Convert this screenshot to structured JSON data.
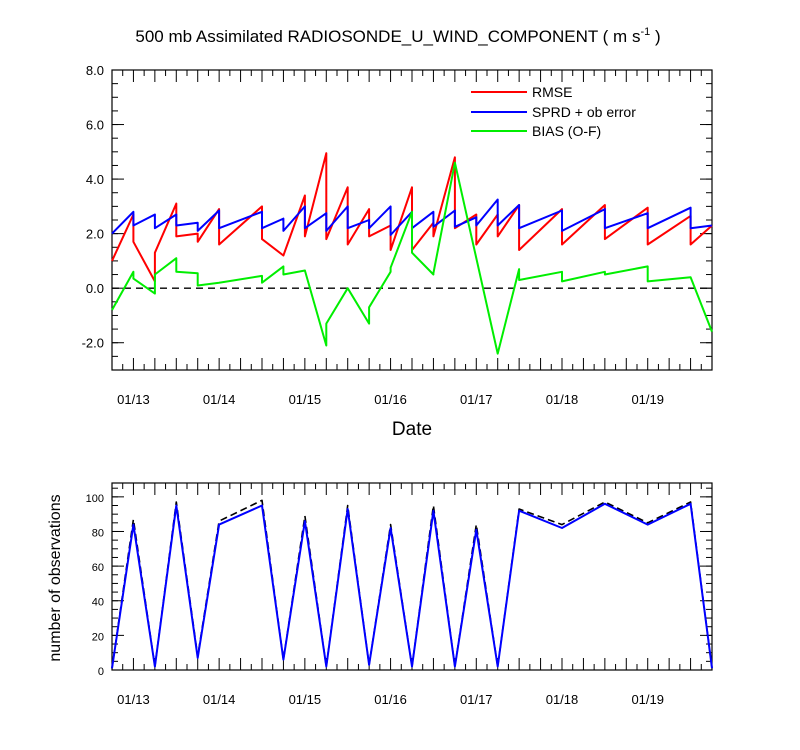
{
  "colors": {
    "rmse": "#ff0000",
    "sprd": "#0000ff",
    "bias": "#00ee00",
    "zero_line": "#000000",
    "obs_total": "#000000",
    "obs_assim": "#0000ff"
  },
  "chart_data": [
    {
      "type": "line",
      "title": "500 mb Assimilated RADIOSONDE_U_WIND_COMPONENT ( m s",
      "title_unit_sup": "-1",
      "title_end": " )",
      "xlabel": "Date",
      "ylabel": "",
      "x_ticks": [
        "01/13",
        "01/14",
        "01/15",
        "01/16",
        "01/17",
        "01/18",
        "01/19"
      ],
      "xlim": [
        0,
        28
      ],
      "ylim": [
        -3,
        8
      ],
      "y_ticks": [
        "8.0",
        "6.0",
        "4.0",
        "2.0",
        "0.0",
        "-2.0"
      ],
      "y_tick_values": [
        8,
        6,
        4,
        2,
        0,
        -2
      ],
      "zero_line": true,
      "legend": [
        "RMSE",
        "SPRD + ob error",
        "BIAS (O-F)"
      ],
      "legend_position": "top-right",
      "series": [
        {
          "name": "RMSE",
          "color_key": "rmse",
          "points": [
            [
              0,
              1.0
            ],
            [
              1,
              2.7
            ],
            [
              1,
              1.7
            ],
            [
              2,
              0.25
            ],
            [
              2,
              1.3
            ],
            [
              3,
              3.1
            ],
            [
              3,
              1.9
            ],
            [
              4,
              2.0
            ],
            [
              4,
              1.7
            ],
            [
              5,
              2.9
            ],
            [
              5,
              1.6
            ],
            [
              7,
              3.0
            ],
            [
              7,
              1.8
            ],
            [
              8,
              1.2
            ],
            [
              9,
              3.4
            ],
            [
              9,
              1.9
            ],
            [
              10,
              4.95
            ],
            [
              10,
              1.8
            ],
            [
              11,
              3.7
            ],
            [
              11,
              1.6
            ],
            [
              12,
              2.9
            ],
            [
              12,
              1.9
            ],
            [
              13,
              2.3
            ],
            [
              13,
              1.4
            ],
            [
              14,
              3.7
            ],
            [
              14,
              1.4
            ],
            [
              15,
              2.4
            ],
            [
              15,
              1.9
            ],
            [
              16,
              4.8
            ],
            [
              16,
              2.2
            ],
            [
              17,
              2.7
            ],
            [
              17,
              1.6
            ],
            [
              18,
              2.7
            ],
            [
              18,
              1.9
            ],
            [
              19,
              3.05
            ],
            [
              19,
              1.4
            ],
            [
              21,
              2.9
            ],
            [
              21,
              1.6
            ],
            [
              23,
              3.05
            ],
            [
              23,
              1.8
            ],
            [
              25,
              2.95
            ],
            [
              25,
              1.6
            ],
            [
              27,
              2.65
            ],
            [
              27,
              1.6
            ],
            [
              28,
              2.3
            ]
          ]
        },
        {
          "name": "SPRD + ob error",
          "color_key": "sprd",
          "points": [
            [
              0,
              2.0
            ],
            [
              1,
              2.8
            ],
            [
              1,
              2.3
            ],
            [
              2,
              2.7
            ],
            [
              2,
              2.2
            ],
            [
              3,
              2.7
            ],
            [
              3,
              2.3
            ],
            [
              4,
              2.4
            ],
            [
              4,
              2.1
            ],
            [
              5,
              2.85
            ],
            [
              5,
              2.2
            ],
            [
              7,
              2.8
            ],
            [
              7,
              2.2
            ],
            [
              8,
              2.55
            ],
            [
              8,
              2.1
            ],
            [
              9,
              3.0
            ],
            [
              9,
              2.2
            ],
            [
              10,
              2.75
            ],
            [
              10,
              2.1
            ],
            [
              11,
              3.0
            ],
            [
              11,
              2.2
            ],
            [
              12,
              2.5
            ],
            [
              12,
              2.2
            ],
            [
              13,
              3.0
            ],
            [
              13,
              1.95
            ],
            [
              14,
              2.8
            ],
            [
              14,
              2.2
            ],
            [
              15,
              2.8
            ],
            [
              15,
              2.25
            ],
            [
              16,
              2.85
            ],
            [
              16,
              2.25
            ],
            [
              17,
              2.6
            ],
            [
              17,
              2.3
            ],
            [
              18,
              3.25
            ],
            [
              18,
              2.3
            ],
            [
              19,
              3.05
            ],
            [
              19,
              2.2
            ],
            [
              21,
              2.85
            ],
            [
              21,
              2.1
            ],
            [
              23,
              2.9
            ],
            [
              23,
              2.2
            ],
            [
              25,
              2.75
            ],
            [
              25,
              2.2
            ],
            [
              27,
              2.95
            ],
            [
              27,
              2.2
            ],
            [
              28,
              2.3
            ]
          ]
        },
        {
          "name": "BIAS (O-F)",
          "color_key": "bias",
          "points": [
            [
              0,
              -0.8
            ],
            [
              1,
              0.6
            ],
            [
              1,
              0.35
            ],
            [
              2,
              -0.2
            ],
            [
              2,
              0.5
            ],
            [
              3,
              1.1
            ],
            [
              3,
              0.6
            ],
            [
              4,
              0.55
            ],
            [
              4,
              0.1
            ],
            [
              5,
              0.2
            ],
            [
              7,
              0.45
            ],
            [
              7,
              0.2
            ],
            [
              8,
              0.8
            ],
            [
              8,
              0.5
            ],
            [
              9,
              0.65
            ],
            [
              10,
              -2.1
            ],
            [
              10,
              -1.3
            ],
            [
              11,
              0.0
            ],
            [
              12,
              -1.3
            ],
            [
              12,
              -0.7
            ],
            [
              13,
              0.6
            ],
            [
              13,
              0.75
            ],
            [
              14,
              2.8
            ],
            [
              14,
              1.3
            ],
            [
              15,
              0.5
            ],
            [
              15,
              0.55
            ],
            [
              16,
              4.6
            ],
            [
              18,
              -2.4
            ],
            [
              19,
              0.7
            ],
            [
              19,
              0.3
            ],
            [
              21,
              0.6
            ],
            [
              21,
              0.25
            ],
            [
              23,
              0.6
            ],
            [
              23,
              0.5
            ],
            [
              25,
              0.8
            ],
            [
              25,
              0.25
            ],
            [
              27,
              0.4
            ],
            [
              28,
              -1.6
            ]
          ]
        }
      ]
    },
    {
      "type": "line",
      "title": "",
      "xlabel": "",
      "ylabel": "number of observations",
      "x_ticks": [
        "01/13",
        "01/14",
        "01/15",
        "01/16",
        "01/17",
        "01/18",
        "01/19"
      ],
      "xlim": [
        0,
        28
      ],
      "ylim": [
        0,
        108
      ],
      "y_ticks": [
        "100",
        "80",
        "60",
        "40",
        "20",
        "0"
      ],
      "y_tick_values": [
        100,
        80,
        60,
        40,
        20,
        0
      ],
      "series": [
        {
          "name": "total",
          "color_key": "obs_total",
          "dashed": true,
          "points": [
            [
              0,
              1
            ],
            [
              1,
              87
            ],
            [
              2,
              2
            ],
            [
              3,
              97
            ],
            [
              4,
              8
            ],
            [
              5,
              86
            ],
            [
              7,
              98
            ],
            [
              8,
              6
            ],
            [
              9,
              89
            ],
            [
              10,
              2
            ],
            [
              11,
              95
            ],
            [
              12,
              3
            ],
            [
              13,
              84
            ],
            [
              14,
              2
            ],
            [
              15,
              95
            ],
            [
              16,
              2
            ],
            [
              17,
              84
            ],
            [
              18,
              2
            ],
            [
              19,
              93
            ],
            [
              21,
              84
            ],
            [
              23,
              97
            ],
            [
              25,
              85
            ],
            [
              27,
              97
            ],
            [
              28,
              1
            ]
          ]
        },
        {
          "name": "assimilated",
          "color_key": "obs_assim",
          "dashed": false,
          "points": [
            [
              0,
              1
            ],
            [
              1,
              84
            ],
            [
              2,
              2
            ],
            [
              3,
              95
            ],
            [
              4,
              7
            ],
            [
              5,
              84
            ],
            [
              7,
              95
            ],
            [
              8,
              6
            ],
            [
              9,
              86
            ],
            [
              10,
              2
            ],
            [
              11,
              93
            ],
            [
              12,
              3
            ],
            [
              13,
              82
            ],
            [
              14,
              2
            ],
            [
              15,
              92
            ],
            [
              16,
              2
            ],
            [
              17,
              81
            ],
            [
              18,
              2
            ],
            [
              19,
              92
            ],
            [
              21,
              82
            ],
            [
              23,
              96
            ],
            [
              25,
              84
            ],
            [
              27,
              96
            ],
            [
              28,
              1
            ]
          ]
        }
      ]
    }
  ]
}
